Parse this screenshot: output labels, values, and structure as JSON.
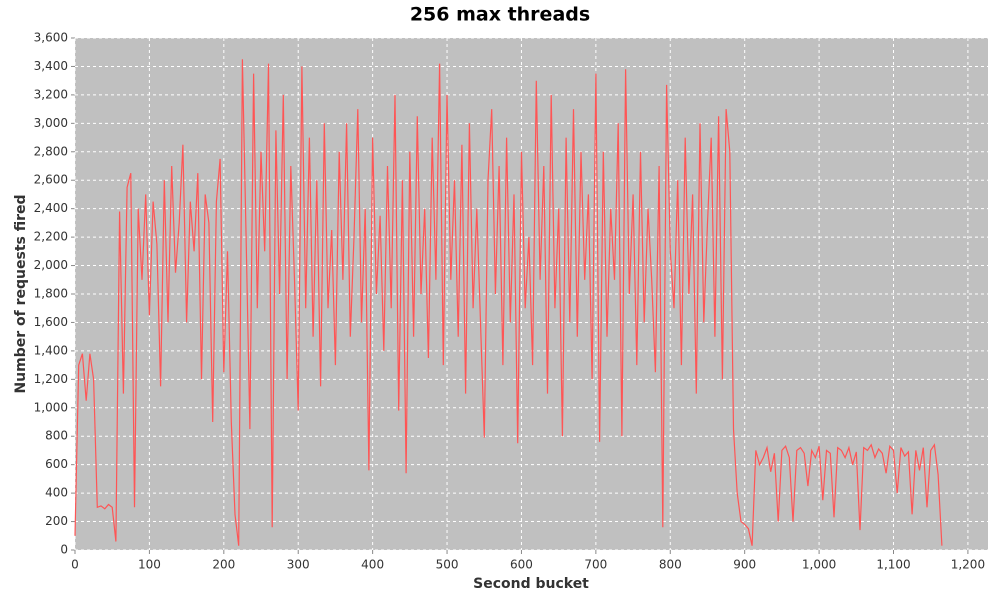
{
  "chart_data": {
    "type": "line",
    "title": "256 max threads",
    "x_label": "Second bucket",
    "y_label": "Number of requests fired",
    "x": [
      0,
      5,
      10,
      15,
      20,
      25,
      30,
      35,
      40,
      45,
      50,
      55,
      60,
      65,
      70,
      75,
      80,
      85,
      90,
      95,
      100,
      105,
      110,
      115,
      120,
      125,
      130,
      135,
      140,
      145,
      150,
      155,
      160,
      165,
      170,
      175,
      180,
      185,
      190,
      195,
      200,
      205,
      210,
      215,
      220,
      225,
      230,
      235,
      240,
      245,
      250,
      255,
      260,
      265,
      270,
      275,
      280,
      285,
      290,
      295,
      300,
      305,
      310,
      315,
      320,
      325,
      330,
      335,
      340,
      345,
      350,
      355,
      360,
      365,
      370,
      375,
      380,
      385,
      390,
      395,
      400,
      405,
      410,
      415,
      420,
      425,
      430,
      435,
      440,
      445,
      450,
      455,
      460,
      465,
      470,
      475,
      480,
      485,
      490,
      495,
      500,
      505,
      510,
      515,
      520,
      525,
      530,
      535,
      540,
      545,
      550,
      555,
      560,
      565,
      570,
      575,
      580,
      585,
      590,
      595,
      600,
      605,
      610,
      615,
      620,
      625,
      630,
      635,
      640,
      645,
      650,
      655,
      660,
      665,
      670,
      675,
      680,
      685,
      690,
      695,
      700,
      705,
      710,
      715,
      720,
      725,
      730,
      735,
      740,
      745,
      750,
      755,
      760,
      765,
      770,
      775,
      780,
      785,
      790,
      795,
      800,
      805,
      810,
      815,
      820,
      825,
      830,
      835,
      840,
      845,
      850,
      855,
      860,
      865,
      870,
      875,
      880,
      885,
      890,
      895,
      900,
      905,
      910,
      915,
      920,
      925,
      930,
      935,
      940,
      945,
      950,
      955,
      960,
      965,
      970,
      975,
      980,
      985,
      990,
      995,
      1000,
      1005,
      1010,
      1015,
      1020,
      1025,
      1030,
      1035,
      1040,
      1045,
      1050,
      1055,
      1060,
      1065,
      1070,
      1075,
      1080,
      1085,
      1090,
      1095,
      1100,
      1105,
      1110,
      1115,
      1120,
      1125,
      1130,
      1135,
      1140,
      1145,
      1150,
      1155,
      1160,
      1165
    ],
    "series": [
      {
        "color": "#ff5555",
        "values": [
          100,
          1300,
          1380,
          1050,
          1380,
          1200,
          300,
          310,
          290,
          320,
          300,
          60,
          2380,
          1100,
          2550,
          2650,
          300,
          2400,
          1900,
          2500,
          1650,
          2450,
          2150,
          1150,
          2600,
          1600,
          2700,
          1950,
          2300,
          2850,
          1600,
          2450,
          2100,
          2650,
          1200,
          2500,
          2300,
          900,
          2450,
          2750,
          1250,
          2100,
          900,
          250,
          30,
          3450,
          2200,
          850,
          3350,
          1700,
          2800,
          2100,
          3420,
          160,
          2950,
          1800,
          3200,
          1200,
          2700,
          1900,
          980,
          3400,
          1700,
          2900,
          1500,
          2600,
          1150,
          3000,
          1700,
          2250,
          1300,
          2800,
          1900,
          3000,
          1500,
          2200,
          3100,
          1600,
          2400,
          560,
          2900,
          1800,
          2350,
          1400,
          2700,
          1700,
          3200,
          980,
          2600,
          540,
          2800,
          1500,
          3050,
          1800,
          2400,
          1350,
          2900,
          1900,
          3420,
          1300,
          3200,
          1900,
          2600,
          1500,
          2850,
          1100,
          3000,
          1700,
          2400,
          1600,
          790,
          2600,
          3100,
          1800,
          2700,
          1300,
          2900,
          1600,
          2500,
          750,
          2800,
          1700,
          2200,
          1300,
          3300,
          1900,
          2700,
          1100,
          3200,
          1700,
          2400,
          800,
          2900,
          1600,
          3100,
          1500,
          2800,
          1900,
          2500,
          1200,
          3350,
          760,
          2800,
          1500,
          2400,
          1900,
          3000,
          800,
          3380,
          1800,
          2500,
          1300,
          2800,
          1600,
          2400,
          1900,
          1250,
          2700,
          160,
          3270,
          2100,
          1700,
          2600,
          1300,
          2900,
          1800,
          2500,
          1100,
          3000,
          1600,
          2300,
          2900,
          1500,
          3050,
          1200,
          3100,
          2800,
          850,
          400,
          200,
          180,
          150,
          30,
          700,
          600,
          650,
          720,
          550,
          680,
          200,
          700,
          730,
          650,
          200,
          700,
          720,
          680,
          450,
          700,
          650,
          730,
          350,
          700,
          680,
          230,
          720,
          700,
          650,
          720,
          600,
          690,
          140,
          720,
          700,
          740,
          650,
          710,
          680,
          540,
          730,
          700,
          400,
          720,
          660,
          690,
          250,
          700,
          560,
          720,
          300,
          700,
          740,
          530,
          30
        ]
      }
    ],
    "xlim": [
      0,
      1227
    ],
    "ylim": [
      0,
      3600
    ],
    "xticks": [
      0,
      100,
      200,
      300,
      400,
      500,
      600,
      700,
      800,
      900,
      {
        "value": 1000,
        "label": "1,000"
      },
      {
        "value": 1100,
        "label": "1,100"
      },
      {
        "value": 1200,
        "label": "1,200"
      }
    ],
    "yticks": [
      0,
      200,
      400,
      600,
      800,
      {
        "value": 1000,
        "label": "1,000"
      },
      {
        "value": 1200,
        "label": "1,200"
      },
      {
        "value": 1400,
        "label": "1,400"
      },
      {
        "value": 1600,
        "label": "1,600"
      },
      {
        "value": 1800,
        "label": "1,800"
      },
      {
        "value": 2000,
        "label": "2,000"
      },
      {
        "value": 2200,
        "label": "2,200"
      },
      {
        "value": 2400,
        "label": "2,400"
      },
      {
        "value": 2600,
        "label": "2,600"
      },
      {
        "value": 2800,
        "label": "2,800"
      },
      {
        "value": 3000,
        "label": "3,000"
      },
      {
        "value": 3200,
        "label": "3,200"
      },
      {
        "value": 3400,
        "label": "3,400"
      },
      {
        "value": 3600,
        "label": "3,600"
      }
    ],
    "grid": true
  }
}
